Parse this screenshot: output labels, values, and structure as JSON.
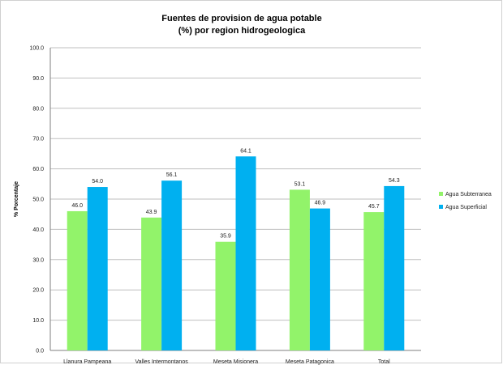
{
  "chart_data": {
    "type": "bar",
    "title": [
      "Fuentes de provision  de agua potable",
      "(%)  por region hidrogeologica"
    ],
    "xlabel": "",
    "ylabel": "% Porcentaje",
    "ylim": [
      0,
      100
    ],
    "yticks": [
      "0.0",
      "10.0",
      "20.0",
      "30.0",
      "40.0",
      "50.0",
      "60.0",
      "70.0",
      "80.0",
      "90.0",
      "100.0"
    ],
    "grid": true,
    "legend_position": "right",
    "categories": [
      "Llanura Pampeana",
      "Valles Intermontanos",
      "Meseta Misionera",
      "Meseta Patagonica",
      "Total"
    ],
    "series": [
      {
        "name": "Agua Subterranea",
        "color": "#92f36a",
        "values": [
          46.0,
          43.9,
          35.9,
          53.1,
          45.7
        ],
        "labels": [
          "46.0",
          "43.9",
          "35.9",
          "53.1",
          "45.7"
        ]
      },
      {
        "name": "Agua Superficial",
        "color": "#00b0f0",
        "values": [
          54.0,
          56.1,
          64.1,
          46.9,
          54.3
        ],
        "labels": [
          "54.0",
          "56.1",
          "64.1",
          "46.9",
          "54.3"
        ]
      }
    ]
  }
}
